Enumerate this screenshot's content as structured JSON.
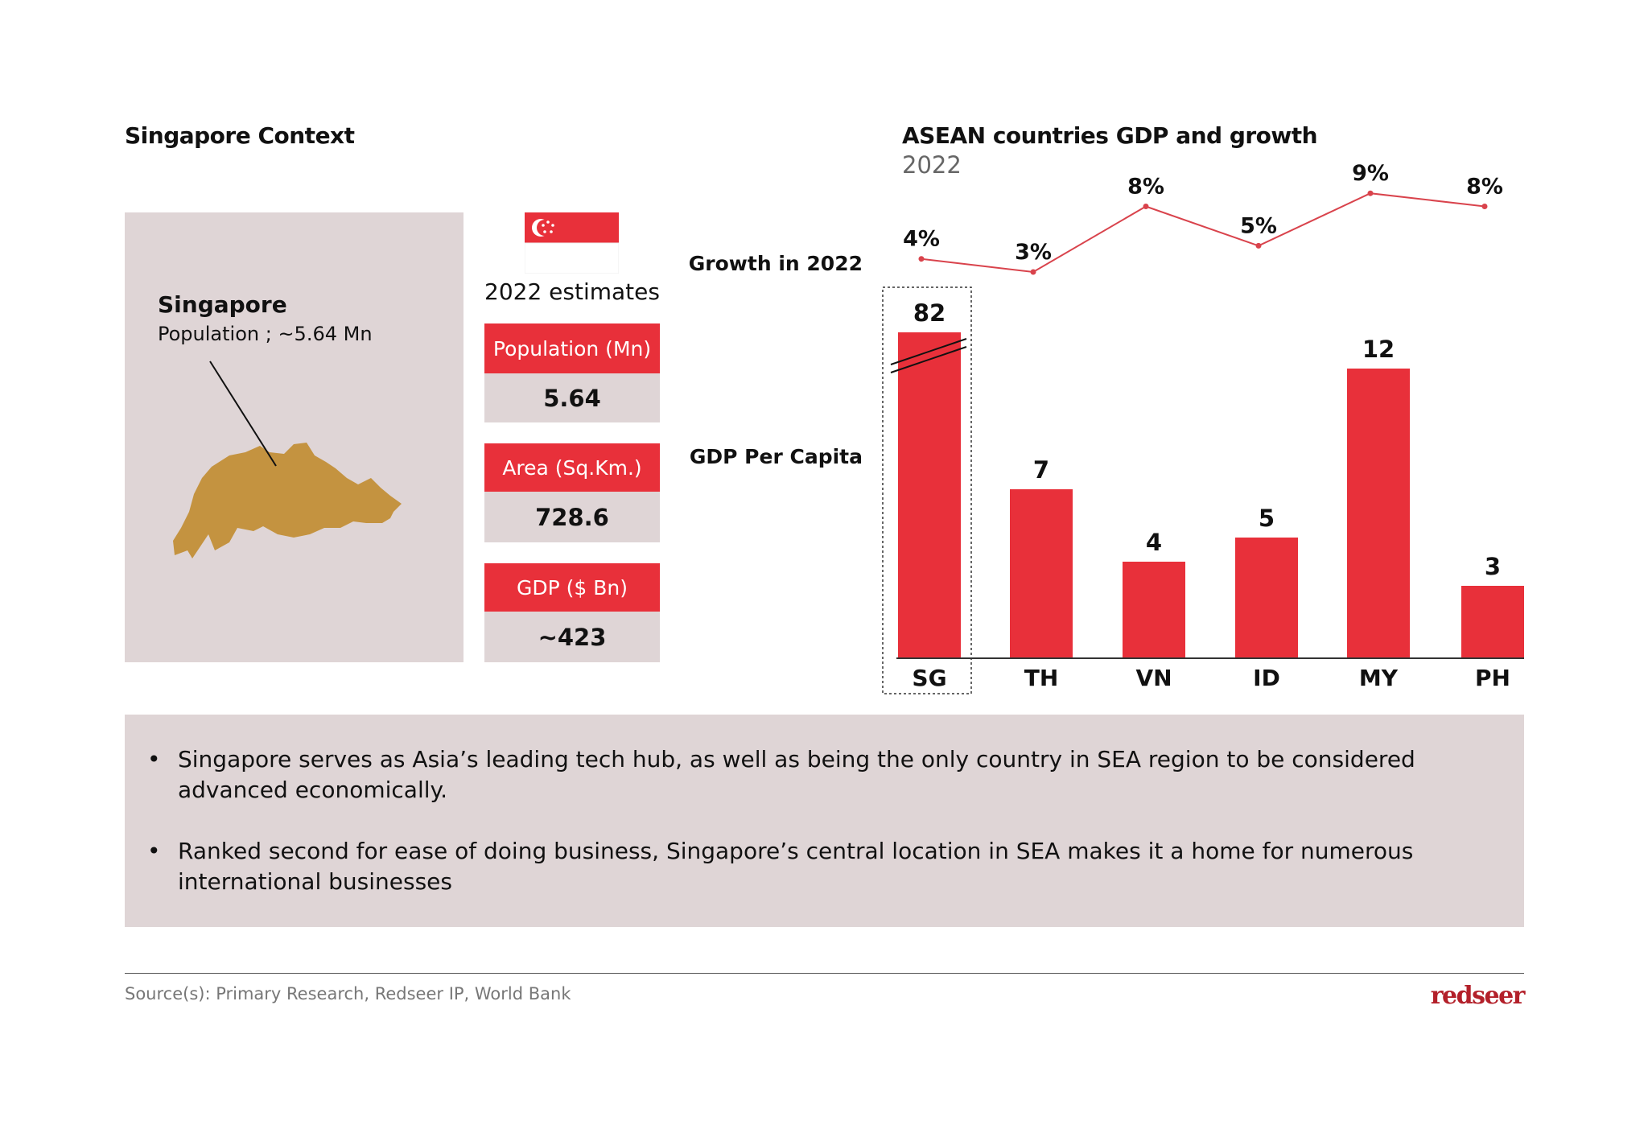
{
  "left": {
    "title": "Singapore Context",
    "map_label": "Singapore",
    "map_sublabel": "Population ; ~5.64 Mn",
    "estimates_title": "2022 estimates",
    "stats": [
      {
        "label": "Population (Mn)",
        "value": "5.64"
      },
      {
        "label": "Area (Sq.Km.)",
        "value": "728.6"
      },
      {
        "label": "GDP ($ Bn)",
        "value": "~423"
      }
    ]
  },
  "chart_data": {
    "type": "bar",
    "title": "ASEAN countries GDP and growth",
    "subtitle": "2022",
    "categories": [
      "SG",
      "TH",
      "VN",
      "ID",
      "MY",
      "PH"
    ],
    "series": [
      {
        "name": "GDP Per Capita",
        "type": "bar",
        "values": [
          82,
          7,
          4,
          5,
          12,
          3
        ],
        "labels": [
          "82",
          "7",
          "4",
          "5",
          "12",
          "3"
        ],
        "broken_axis_category": "SG"
      },
      {
        "name": "Growth in 2022",
        "type": "line",
        "unit": "%",
        "values": [
          4,
          3,
          8,
          5,
          9,
          8
        ],
        "labels": [
          "4%",
          "3%",
          "8%",
          "5%",
          "9%",
          "8%"
        ]
      }
    ],
    "highlighted_category": "SG",
    "colors": {
      "bar": "#e8303a",
      "line": "#d9434c"
    }
  },
  "bullets": [
    "Singapore serves as Asia’s leading tech hub, as well as being the only country in SEA region to be considered advanced economically.",
    "Ranked second for ease of doing business, Singapore’s central location in SEA makes it a home for numerous international businesses"
  ],
  "footer": {
    "source": "Source(s): Primary Research, Redseer IP, World Bank",
    "logo": "redseer"
  },
  "colors": {
    "accent": "#e8303a",
    "panel": "#dfd5d6",
    "map": "#c49340",
    "logo": "#b3202a"
  }
}
